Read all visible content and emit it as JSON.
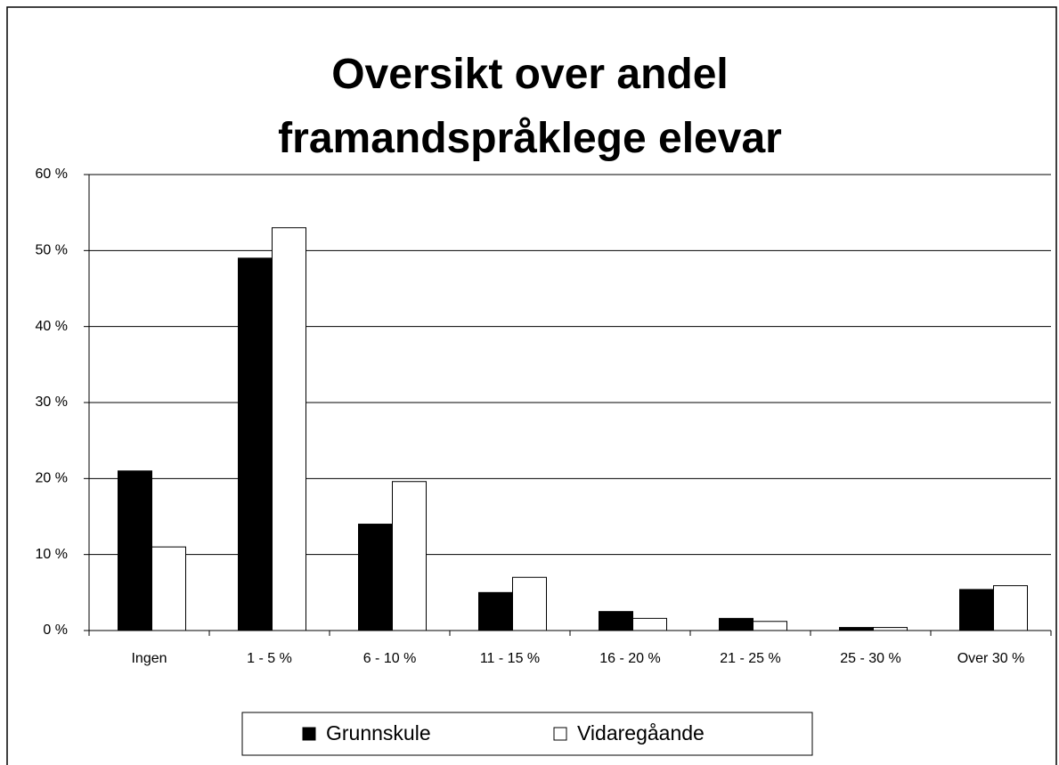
{
  "chart_data": {
    "type": "bar",
    "title": "Oversikt over andel framandspråklege elevar",
    "categories": [
      "Ingen",
      "1 - 5 %",
      "6 - 10 %",
      "11 - 15 %",
      "16 - 20 %",
      "21 - 25 %",
      "25 - 30 %",
      "Over 30 %"
    ],
    "series": [
      {
        "name": "Grunnskule",
        "color": "#000000",
        "values": [
          21,
          49,
          14,
          5,
          2.5,
          1.6,
          0.4,
          5.4
        ]
      },
      {
        "name": "Vidaregåande",
        "color": "#ffffff",
        "values": [
          11,
          53,
          19.6,
          7,
          1.6,
          1.2,
          0.4,
          5.9
        ]
      }
    ],
    "ylim": [
      0,
      60
    ],
    "yticks": [
      {
        "value": 0,
        "label": "0 %"
      },
      {
        "value": 10,
        "label": "10 %"
      },
      {
        "value": 20,
        "label": "20 %"
      },
      {
        "value": 30,
        "label": "30 %"
      },
      {
        "value": 40,
        "label": "40 %"
      },
      {
        "value": 50,
        "label": "50 %"
      },
      {
        "value": 60,
        "label": "60 %"
      }
    ],
    "grid": true,
    "legend": "bottom"
  }
}
